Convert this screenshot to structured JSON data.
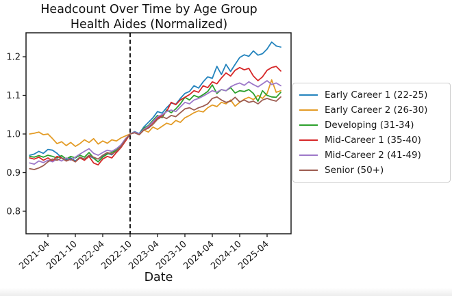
{
  "title": "Headcount Over Time by Age Group",
  "subtitle": "Health Aides (Normalized)",
  "chart_data": {
    "type": "line",
    "title": "Headcount Over Time by Age Group",
    "subtitle": "Health Aides (Normalized)",
    "xlabel": "Date",
    "ylabel": "",
    "grid": false,
    "legend_position": "outside-right",
    "ylim": [
      0.74,
      1.262
    ],
    "y_ticks": [
      0.8,
      0.9,
      1.0,
      1.1,
      1.2
    ],
    "x_ticks": [
      "2021-04",
      "2021-10",
      "2022-04",
      "2022-10",
      "2023-04",
      "2023-10",
      "2024-04",
      "2024-10",
      "2025-04"
    ],
    "normalization_line_x": "2022-10",
    "x": [
      "2020-12",
      "2021-01",
      "2021-02",
      "2021-03",
      "2021-04",
      "2021-05",
      "2021-06",
      "2021-07",
      "2021-08",
      "2021-09",
      "2021-10",
      "2021-11",
      "2021-12",
      "2022-01",
      "2022-02",
      "2022-03",
      "2022-04",
      "2022-05",
      "2022-06",
      "2022-07",
      "2022-08",
      "2022-09",
      "2022-10",
      "2022-11",
      "2022-12",
      "2023-01",
      "2023-02",
      "2023-03",
      "2023-04",
      "2023-05",
      "2023-06",
      "2023-07",
      "2023-08",
      "2023-09",
      "2023-10",
      "2023-11",
      "2023-12",
      "2024-01",
      "2024-02",
      "2024-03",
      "2024-04",
      "2024-05",
      "2024-06",
      "2024-07",
      "2024-08",
      "2024-09",
      "2024-10",
      "2024-11",
      "2024-12",
      "2025-01",
      "2025-02",
      "2025-03",
      "2025-04",
      "2025-05",
      "2025-06",
      "2025-07"
    ],
    "series": [
      {
        "name": "Early Career 1 (22-25)",
        "color": "#2383bd",
        "values": [
          0.945,
          0.948,
          0.955,
          0.95,
          0.96,
          0.958,
          0.95,
          0.938,
          0.933,
          0.938,
          0.93,
          0.94,
          0.935,
          0.944,
          0.937,
          0.928,
          0.942,
          0.95,
          0.946,
          0.958,
          0.97,
          0.985,
          1.0,
          1.006,
          1.001,
          1.018,
          1.03,
          1.042,
          1.058,
          1.054,
          1.068,
          1.08,
          1.077,
          1.092,
          1.105,
          1.11,
          1.125,
          1.119,
          1.135,
          1.148,
          1.144,
          1.175,
          1.154,
          1.18,
          1.162,
          1.18,
          1.198,
          1.205,
          1.201,
          1.215,
          1.204,
          1.208,
          1.22,
          1.238,
          1.228,
          1.225
        ]
      },
      {
        "name": "Early Career 2 (26-30)",
        "color": "#e39b25",
        "values": [
          1.0,
          1.002,
          1.005,
          0.998,
          1.0,
          0.988,
          0.975,
          0.98,
          0.97,
          0.978,
          0.968,
          0.975,
          0.985,
          0.978,
          0.988,
          0.974,
          0.982,
          0.976,
          0.985,
          0.982,
          0.99,
          0.995,
          1.0,
          1.004,
          0.998,
          1.01,
          1.005,
          1.018,
          1.012,
          1.02,
          1.028,
          1.024,
          1.035,
          1.03,
          1.042,
          1.048,
          1.055,
          1.06,
          1.057,
          1.068,
          1.075,
          1.071,
          1.082,
          1.078,
          1.088,
          1.072,
          1.082,
          1.09,
          1.095,
          1.089,
          1.1,
          1.092,
          1.105,
          1.14,
          1.108,
          1.112
        ]
      },
      {
        "name": "Developing (31-34)",
        "color": "#2ca02c",
        "values": [
          0.942,
          0.94,
          0.944,
          0.94,
          0.945,
          0.942,
          0.938,
          0.944,
          0.935,
          0.942,
          0.938,
          0.945,
          0.94,
          0.952,
          0.938,
          0.928,
          0.94,
          0.948,
          0.952,
          0.958,
          0.968,
          0.984,
          1.0,
          1.005,
          0.999,
          1.015,
          1.022,
          1.035,
          1.048,
          1.042,
          1.062,
          1.055,
          1.065,
          1.078,
          1.095,
          1.088,
          1.1,
          1.095,
          1.102,
          1.11,
          1.127,
          1.105,
          1.115,
          1.112,
          1.12,
          1.106,
          1.112,
          1.11,
          1.115,
          1.105,
          1.085,
          1.112,
          1.1,
          1.096,
          1.095,
          1.108
        ]
      },
      {
        "name": "Mid-Career 1 (35-40)",
        "color": "#d62728",
        "values": [
          0.938,
          0.935,
          0.94,
          0.932,
          0.938,
          0.93,
          0.942,
          0.938,
          0.93,
          0.935,
          0.928,
          0.938,
          0.932,
          0.942,
          0.925,
          0.92,
          0.935,
          0.942,
          0.938,
          0.952,
          0.965,
          0.982,
          1.0,
          1.004,
          0.999,
          1.012,
          1.018,
          1.03,
          1.042,
          1.048,
          1.058,
          1.082,
          1.076,
          1.088,
          1.095,
          1.102,
          1.112,
          1.108,
          1.125,
          1.12,
          1.135,
          1.13,
          1.145,
          1.158,
          1.15,
          1.165,
          1.172,
          1.166,
          1.17,
          1.15,
          1.138,
          1.148,
          1.165,
          1.172,
          1.175,
          1.163
        ]
      },
      {
        "name": "Mid-Career 2 (41-49)",
        "color": "#9d78c9",
        "values": [
          0.925,
          0.922,
          0.93,
          0.926,
          0.932,
          0.928,
          0.935,
          0.93,
          0.938,
          0.932,
          0.94,
          0.948,
          0.955,
          0.962,
          0.95,
          0.945,
          0.952,
          0.958,
          0.955,
          0.962,
          0.972,
          0.988,
          1.0,
          1.005,
          1.0,
          1.012,
          1.02,
          1.032,
          1.045,
          1.05,
          1.058,
          1.062,
          1.058,
          1.07,
          1.082,
          1.078,
          1.088,
          1.092,
          1.098,
          1.105,
          1.112,
          1.108,
          1.115,
          1.112,
          1.122,
          1.128,
          1.132,
          1.126,
          1.135,
          1.128,
          1.122,
          1.13,
          1.138,
          1.128,
          1.132,
          1.125
        ]
      },
      {
        "name": "Senior (50+)",
        "color": "#9c5b50",
        "values": [
          0.91,
          0.908,
          0.912,
          0.918,
          0.928,
          0.935,
          0.932,
          0.938,
          0.93,
          0.935,
          0.928,
          0.94,
          0.935,
          0.945,
          0.94,
          0.935,
          0.945,
          0.952,
          0.948,
          0.955,
          0.968,
          0.985,
          1.0,
          1.003,
          0.998,
          1.01,
          1.015,
          1.025,
          1.038,
          1.045,
          1.04,
          1.048,
          1.045,
          1.055,
          1.065,
          1.068,
          1.062,
          1.068,
          1.072,
          1.078,
          1.092,
          1.096,
          1.088,
          1.082,
          1.085,
          1.095,
          1.083,
          1.088,
          1.082,
          1.085,
          1.078,
          1.088,
          1.092,
          1.088,
          1.085,
          1.096
        ]
      }
    ]
  }
}
